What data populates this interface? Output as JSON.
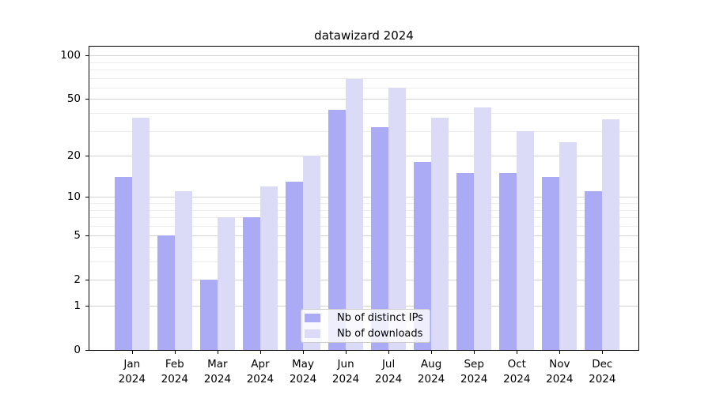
{
  "chart_data": {
    "type": "bar",
    "title": "datawizard 2024",
    "categories": [
      "Jan",
      "Feb",
      "Mar",
      "Apr",
      "May",
      "Jun",
      "Jul",
      "Aug",
      "Sep",
      "Oct",
      "Nov",
      "Dec"
    ],
    "year_label": "2024",
    "series": [
      {
        "name": "Nb of distinct IPs",
        "color": "#aaaaf5",
        "values": [
          14,
          5,
          2,
          7,
          13,
          42,
          32,
          18,
          15,
          15,
          14,
          11
        ]
      },
      {
        "name": "Nb of downloads",
        "color": "#dbdbf8",
        "values": [
          37,
          11,
          7,
          12,
          20,
          69,
          60,
          37,
          44,
          30,
          25,
          36
        ]
      }
    ],
    "xlabel": "",
    "ylabel": "",
    "yscale": "log1p",
    "ylim": [
      0,
      115
    ],
    "yticks": [
      0,
      1,
      2,
      5,
      10,
      20,
      50,
      100
    ],
    "minor_gridlines": [
      3,
      4,
      6,
      7,
      8,
      9,
      30,
      40,
      60,
      70,
      80,
      90
    ],
    "grid": true,
    "legend_position": "bottom-center"
  }
}
